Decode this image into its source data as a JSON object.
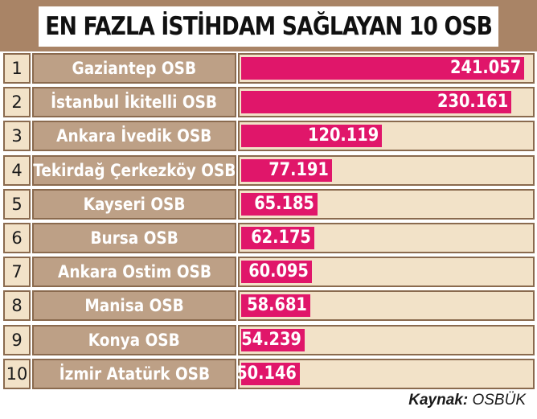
{
  "chart_data": {
    "type": "bar",
    "title": "EN FAZLA İSTİHDAM SAĞLAYAN 10 OSB",
    "ranks": [
      "1",
      "2",
      "3",
      "4",
      "5",
      "6",
      "7",
      "8",
      "9",
      "10"
    ],
    "categories": [
      "Gaziantep OSB",
      "İstanbul İkitelli OSB",
      "Ankara İvedik OSB",
      "Tekirdağ Çerkezköy OSB",
      "Kayseri OSB",
      "Bursa OSB",
      "Ankara Ostim OSB",
      "Manisa OSB",
      "Konya OSB",
      "İzmir Atatürk OSB"
    ],
    "values": [
      241057,
      230161,
      120119,
      77191,
      65185,
      62175,
      60095,
      58681,
      54239,
      50146
    ],
    "value_labels": [
      "241.057",
      "230.161",
      "120.119",
      "77.191",
      "65.185",
      "62.175",
      "60.095",
      "58.681",
      "54.239",
      "50.146"
    ],
    "xlim": [
      0,
      241057
    ],
    "orientation": "horizontal",
    "grid": false,
    "legend": "none"
  },
  "source": {
    "label": "Kaynak:",
    "value": "OSBÜK"
  },
  "colors": {
    "header": "#a98466",
    "bar": "#e0166a",
    "track": "#f2e2c8",
    "name_bg": "#bda086",
    "border": "#8a6a4e"
  }
}
